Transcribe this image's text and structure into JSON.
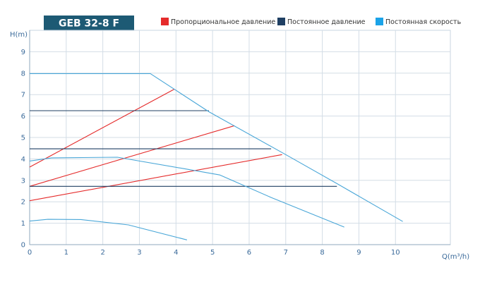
{
  "chart_data": {
    "type": "line",
    "title": "GEB 32-8 F",
    "xlabel": "Q(m³/h)",
    "ylabel": "H(m)",
    "xlim": [
      0,
      11.5
    ],
    "ylim": [
      0,
      10
    ],
    "xticks": [
      0,
      1,
      2,
      3,
      4,
      5,
      6,
      7,
      8,
      9,
      10
    ],
    "yticks": [
      0,
      1,
      2,
      3,
      4,
      5,
      6,
      7,
      8,
      9
    ],
    "grid": true,
    "legend_position": "top",
    "legend": [
      {
        "label": "Пропорциональное давление",
        "color": "#e52b2b"
      },
      {
        "label": "Постоянное давление",
        "color": "#1f3f63"
      },
      {
        "label": "Постоянная скорость",
        "color": "#1aa3e8"
      }
    ],
    "series": [
      {
        "mode": "proportional",
        "color": "#e52b2b",
        "points": [
          [
            0,
            2.05
          ],
          [
            6.9,
            4.2
          ]
        ]
      },
      {
        "mode": "proportional",
        "color": "#e52b2b",
        "points": [
          [
            0,
            2.72
          ],
          [
            5.6,
            5.55
          ]
        ]
      },
      {
        "mode": "proportional",
        "color": "#e52b2b",
        "points": [
          [
            0,
            3.62
          ],
          [
            3.95,
            7.25
          ]
        ]
      },
      {
        "mode": "constant_pressure",
        "color": "#1f3f63",
        "points": [
          [
            0,
            2.72
          ],
          [
            8.4,
            2.72
          ]
        ]
      },
      {
        "mode": "constant_pressure",
        "color": "#1f3f63",
        "points": [
          [
            0,
            4.47
          ],
          [
            6.6,
            4.47
          ]
        ]
      },
      {
        "mode": "constant_pressure",
        "color": "#1f3f63",
        "points": [
          [
            0,
            6.25
          ],
          [
            4.9,
            6.25
          ]
        ]
      },
      {
        "mode": "constant_speed",
        "color": "#4aa7d8",
        "points": [
          [
            0,
            7.98
          ],
          [
            3.3,
            7.98
          ],
          [
            4.9,
            6.2
          ],
          [
            7.0,
            4.2
          ],
          [
            8.4,
            2.85
          ],
          [
            10.2,
            1.08
          ]
        ]
      },
      {
        "mode": "constant_speed",
        "color": "#4aa7d8",
        "points": [
          [
            0,
            3.9
          ],
          [
            0.6,
            4.05
          ],
          [
            2.4,
            4.08
          ],
          [
            4.2,
            3.55
          ],
          [
            5.2,
            3.25
          ],
          [
            6.6,
            2.2
          ],
          [
            8.6,
            0.82
          ]
        ]
      },
      {
        "mode": "constant_speed",
        "color": "#4aa7d8",
        "points": [
          [
            0,
            1.1
          ],
          [
            0.5,
            1.18
          ],
          [
            1.4,
            1.17
          ],
          [
            2.7,
            0.92
          ],
          [
            4.3,
            0.22
          ]
        ]
      }
    ]
  }
}
